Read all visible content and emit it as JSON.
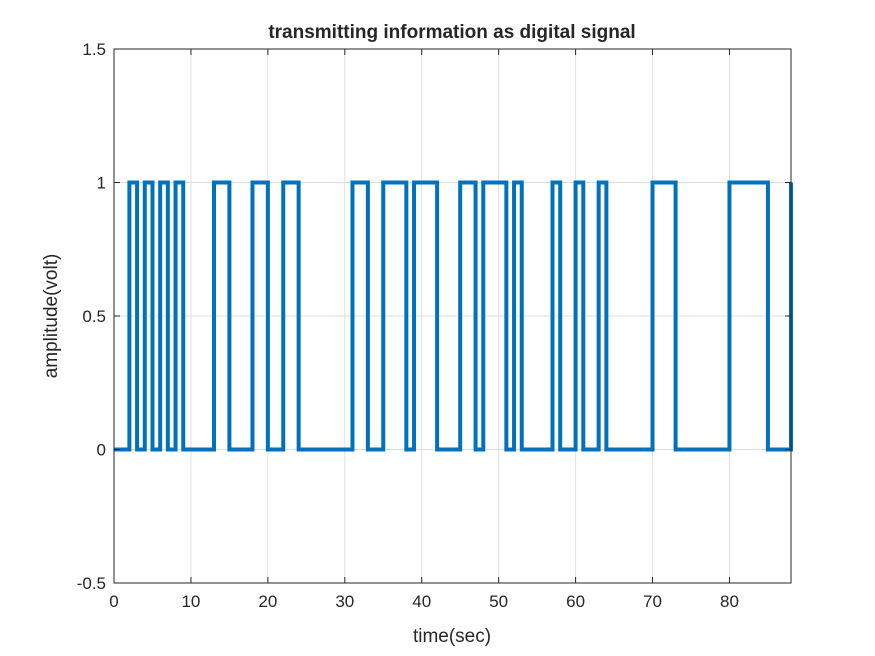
{
  "chart_data": {
    "type": "line",
    "title": "transmitting information as digital signal",
    "xlabel": "time(sec)",
    "ylabel": "amplitude(volt)",
    "xlim": [
      0,
      88
    ],
    "ylim": [
      -0.5,
      1.5
    ],
    "xticks": [
      "0",
      "10",
      "20",
      "30",
      "40",
      "50",
      "60",
      "70",
      "80"
    ],
    "yticks": [
      "-0.5",
      "0",
      "0.5",
      "1",
      "1.5"
    ],
    "grid": true,
    "line_color": "#0072BD",
    "series": [
      {
        "step": true,
        "x": [
          0,
          2,
          3,
          4,
          5,
          6,
          7,
          8,
          9,
          13,
          15,
          18,
          20,
          22,
          24,
          31,
          33,
          35,
          38,
          39,
          42,
          45,
          47,
          48,
          51,
          52,
          53,
          57,
          58,
          60,
          61,
          63,
          64,
          70,
          73,
          80,
          85,
          88
        ],
        "y": [
          0,
          1,
          0,
          1,
          0,
          1,
          0,
          1,
          0,
          1,
          0,
          1,
          0,
          1,
          0,
          1,
          0,
          1,
          0,
          1,
          0,
          1,
          0,
          1,
          0,
          1,
          0,
          1,
          0,
          1,
          0,
          1,
          0,
          1,
          0,
          1,
          0,
          1
        ]
      }
    ]
  }
}
